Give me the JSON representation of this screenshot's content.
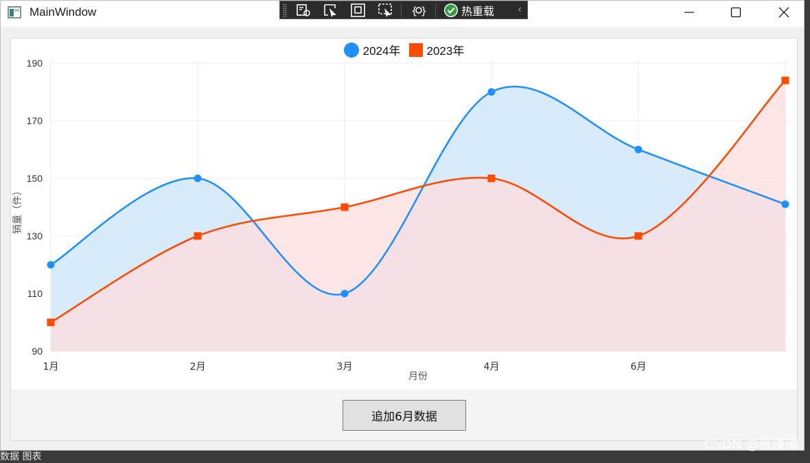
{
  "window": {
    "title": "MainWindow",
    "controls": [
      "minimize",
      "maximize",
      "close"
    ]
  },
  "debug_toolbar": {
    "icons": [
      "select-element-icon",
      "pointer-select-icon",
      "layout-adorner-icon",
      "track-focus-icon",
      "binding-failures-icon"
    ],
    "hot_reload_label": "热重载",
    "status_color": "#2ea043"
  },
  "chart": {
    "legend": [
      {
        "name": "2024年",
        "marker": "circle",
        "color": "#1f90ff"
      },
      {
        "name": "2023年",
        "marker": "square",
        "color": "#ff4a00"
      }
    ],
    "xlabel": "月份",
    "ylabel": "销量（件）"
  },
  "chart_data": {
    "type": "area",
    "categories": [
      "1月",
      "2月",
      "3月",
      "4月",
      "6月",
      ""
    ],
    "series": [
      {
        "name": "2024年",
        "values": [
          120,
          150,
          110,
          180,
          160,
          141
        ],
        "color": "#1f90ff",
        "fill": "#d8ebfa",
        "marker": "circle"
      },
      {
        "name": "2023年",
        "values": [
          100,
          130,
          140,
          150,
          130,
          184
        ],
        "color": "#ff4a00",
        "fill": "#ffdede",
        "marker": "square"
      }
    ],
    "yticks": [
      90,
      110,
      130,
      150,
      170,
      190
    ],
    "ylim": [
      90,
      190
    ],
    "xlabel": "月份",
    "ylabel": "销量（件）",
    "grid": true,
    "legend_position": "top-center",
    "smooth": true
  },
  "action_button": {
    "label": "追加6月数据"
  },
  "watermark": "CSDN @张謹礶",
  "background_text": "数据 图表"
}
